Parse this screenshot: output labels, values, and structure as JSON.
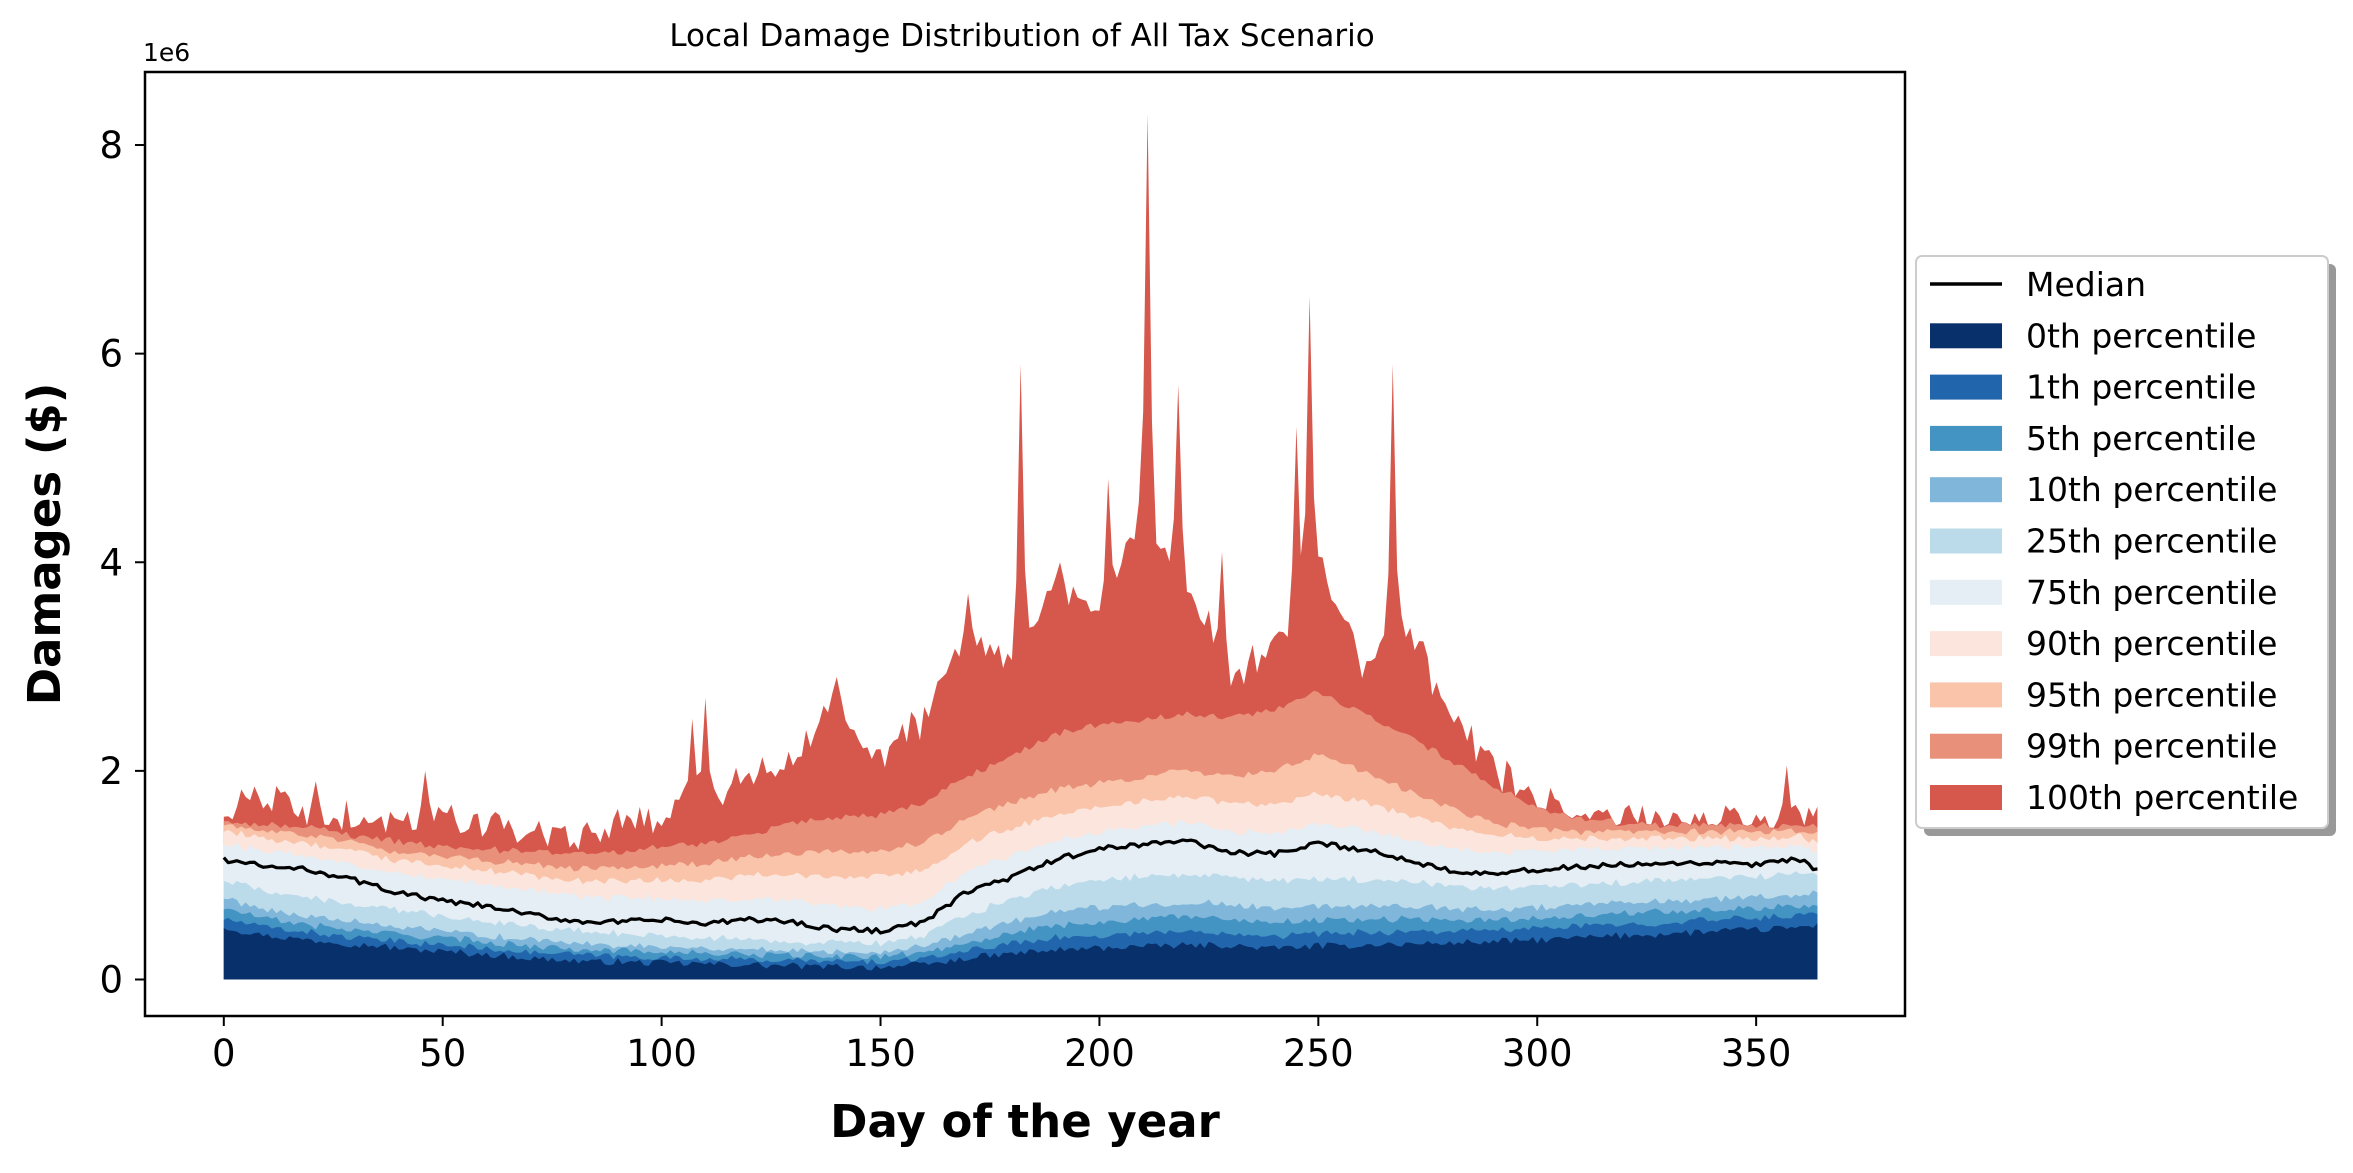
{
  "chart_data": {
    "type": "area",
    "title": "Local Damage Distribution of All Tax Scenario",
    "xlabel": "Day of the year",
    "ylabel": "Damages ($)",
    "y_multiplier_label": "1e6",
    "xlim": [
      -18,
      384
    ],
    "ylim": [
      -0.35,
      8.7
    ],
    "x_ticks": [
      0,
      50,
      100,
      150,
      200,
      250,
      300,
      350
    ],
    "y_ticks": [
      0,
      2,
      4,
      6,
      8
    ],
    "grid": false,
    "legend_position": "right",
    "legend": [
      {
        "label": "Median",
        "kind": "line",
        "color": "#000000"
      },
      {
        "label": "0th percentile",
        "kind": "patch",
        "color": "#08306b"
      },
      {
        "label": "1th percentile",
        "kind": "patch",
        "color": "#2166ac"
      },
      {
        "label": "5th percentile",
        "kind": "patch",
        "color": "#4393c3"
      },
      {
        "label": "10th percentile",
        "kind": "patch",
        "color": "#7fb6d9"
      },
      {
        "label": "25th percentile",
        "kind": "patch",
        "color": "#bcdbea"
      },
      {
        "label": "75th percentile",
        "kind": "patch",
        "color": "#e4eef4"
      },
      {
        "label": "90th percentile",
        "kind": "patch",
        "color": "#fbe5dc"
      },
      {
        "label": "95th percentile",
        "kind": "patch",
        "color": "#f9c4a9"
      },
      {
        "label": "99th percentile",
        "kind": "patch",
        "color": "#e8907a"
      },
      {
        "label": "100th percentile",
        "kind": "patch",
        "color": "#d6574b"
      }
    ],
    "x_days": [
      0,
      10,
      20,
      30,
      40,
      50,
      60,
      70,
      80,
      90,
      100,
      110,
      120,
      130,
      140,
      150,
      160,
      170,
      180,
      190,
      200,
      210,
      220,
      230,
      240,
      250,
      260,
      270,
      280,
      290,
      300,
      310,
      320,
      330,
      340,
      350,
      360,
      364
    ],
    "series": [
      {
        "name": "0th percentile",
        "values": [
          0.5,
          0.42,
          0.38,
          0.34,
          0.3,
          0.27,
          0.24,
          0.2,
          0.18,
          0.17,
          0.16,
          0.15,
          0.14,
          0.13,
          0.12,
          0.12,
          0.14,
          0.2,
          0.25,
          0.28,
          0.3,
          0.32,
          0.33,
          0.32,
          0.3,
          0.32,
          0.33,
          0.34,
          0.35,
          0.36,
          0.38,
          0.4,
          0.42,
          0.44,
          0.46,
          0.48,
          0.5,
          0.52
        ]
      },
      {
        "name": "1th percentile",
        "values": [
          0.58,
          0.5,
          0.45,
          0.4,
          0.36,
          0.33,
          0.3,
          0.26,
          0.24,
          0.22,
          0.21,
          0.2,
          0.19,
          0.18,
          0.17,
          0.17,
          0.2,
          0.28,
          0.35,
          0.4,
          0.42,
          0.45,
          0.46,
          0.45,
          0.42,
          0.44,
          0.45,
          0.46,
          0.46,
          0.47,
          0.49,
          0.51,
          0.53,
          0.55,
          0.57,
          0.59,
          0.61,
          0.63
        ]
      },
      {
        "name": "5th percentile",
        "values": [
          0.68,
          0.58,
          0.52,
          0.47,
          0.43,
          0.4,
          0.36,
          0.32,
          0.3,
          0.28,
          0.27,
          0.25,
          0.24,
          0.23,
          0.22,
          0.22,
          0.26,
          0.36,
          0.45,
          0.52,
          0.55,
          0.58,
          0.6,
          0.58,
          0.55,
          0.57,
          0.58,
          0.58,
          0.57,
          0.57,
          0.59,
          0.61,
          0.63,
          0.65,
          0.67,
          0.69,
          0.71,
          0.73
        ]
      },
      {
        "name": "10th percentile",
        "values": [
          0.78,
          0.67,
          0.6,
          0.55,
          0.5,
          0.46,
          0.42,
          0.38,
          0.35,
          0.33,
          0.32,
          0.3,
          0.29,
          0.28,
          0.27,
          0.27,
          0.32,
          0.45,
          0.56,
          0.65,
          0.69,
          0.72,
          0.74,
          0.72,
          0.68,
          0.7,
          0.71,
          0.7,
          0.68,
          0.67,
          0.69,
          0.71,
          0.73,
          0.75,
          0.77,
          0.79,
          0.81,
          0.83
        ]
      },
      {
        "name": "25th percentile",
        "values": [
          0.95,
          0.85,
          0.78,
          0.72,
          0.66,
          0.61,
          0.56,
          0.51,
          0.47,
          0.44,
          0.42,
          0.4,
          0.38,
          0.36,
          0.35,
          0.35,
          0.42,
          0.62,
          0.78,
          0.9,
          0.95,
          0.99,
          1.01,
          0.98,
          0.94,
          0.96,
          0.96,
          0.94,
          0.9,
          0.88,
          0.89,
          0.91,
          0.93,
          0.95,
          0.97,
          0.99,
          1.01,
          1.02
        ]
      },
      {
        "name": "Median",
        "values": [
          1.15,
          1.08,
          1.05,
          0.95,
          0.83,
          0.75,
          0.7,
          0.62,
          0.56,
          0.55,
          0.57,
          0.53,
          0.58,
          0.55,
          0.48,
          0.47,
          0.55,
          0.85,
          0.98,
          1.15,
          1.25,
          1.3,
          1.33,
          1.22,
          1.2,
          1.3,
          1.25,
          1.15,
          1.05,
          1.02,
          1.05,
          1.08,
          1.1,
          1.1,
          1.12,
          1.1,
          1.15,
          1.05
        ]
      },
      {
        "name": "75th percentile",
        "values": [
          1.3,
          1.23,
          1.18,
          1.1,
          1.02,
          0.96,
          0.92,
          0.86,
          0.8,
          0.78,
          0.78,
          0.75,
          0.77,
          0.75,
          0.7,
          0.68,
          0.74,
          1.05,
          1.18,
          1.32,
          1.42,
          1.48,
          1.5,
          1.42,
          1.4,
          1.48,
          1.44,
          1.35,
          1.26,
          1.22,
          1.24,
          1.25,
          1.26,
          1.26,
          1.28,
          1.26,
          1.28,
          1.22
        ]
      },
      {
        "name": "90th percentile",
        "values": [
          1.42,
          1.35,
          1.3,
          1.22,
          1.14,
          1.08,
          1.05,
          1.0,
          0.95,
          0.94,
          0.96,
          0.95,
          1.0,
          1.0,
          0.98,
          0.98,
          1.05,
          1.32,
          1.45,
          1.58,
          1.65,
          1.72,
          1.75,
          1.68,
          1.68,
          1.78,
          1.7,
          1.58,
          1.45,
          1.38,
          1.36,
          1.35,
          1.35,
          1.35,
          1.36,
          1.35,
          1.37,
          1.32
        ]
      },
      {
        "name": "95th percentile",
        "values": [
          1.48,
          1.42,
          1.38,
          1.3,
          1.22,
          1.17,
          1.14,
          1.1,
          1.06,
          1.06,
          1.1,
          1.1,
          1.18,
          1.22,
          1.22,
          1.22,
          1.32,
          1.55,
          1.7,
          1.82,
          1.88,
          1.95,
          2.0,
          1.95,
          2.0,
          2.15,
          2.0,
          1.82,
          1.65,
          1.5,
          1.44,
          1.42,
          1.41,
          1.41,
          1.42,
          1.41,
          1.43,
          1.4
        ]
      },
      {
        "name": "99th percentile",
        "values": [
          1.52,
          1.48,
          1.45,
          1.38,
          1.32,
          1.28,
          1.25,
          1.22,
          1.2,
          1.22,
          1.28,
          1.3,
          1.4,
          1.5,
          1.55,
          1.58,
          1.7,
          1.95,
          2.15,
          2.35,
          2.45,
          2.5,
          2.55,
          2.5,
          2.6,
          2.75,
          2.55,
          2.35,
          2.1,
          1.85,
          1.65,
          1.55,
          1.5,
          1.48,
          1.48,
          1.47,
          1.48,
          1.46
        ]
      },
      {
        "name": "100th percentile",
        "values": [
          1.58,
          1.72,
          1.6,
          1.55,
          1.48,
          1.62,
          1.44,
          1.42,
          1.35,
          1.45,
          1.6,
          1.75,
          1.95,
          2.1,
          2.7,
          2.1,
          2.5,
          3.3,
          3.0,
          3.8,
          3.4,
          4.5,
          3.8,
          2.9,
          3.2,
          4.0,
          3.0,
          3.4,
          2.6,
          2.0,
          1.7,
          1.58,
          1.55,
          1.52,
          1.52,
          1.5,
          1.55,
          1.55
        ]
      }
    ],
    "peaks_100th": [
      [
        7,
        1.85
      ],
      [
        21,
        1.9
      ],
      [
        46,
        2.0
      ],
      [
        107,
        2.5
      ],
      [
        110,
        2.7
      ],
      [
        140,
        2.9
      ],
      [
        170,
        3.7
      ],
      [
        182,
        5.9
      ],
      [
        191,
        4.0
      ],
      [
        202,
        4.8
      ],
      [
        211,
        8.3
      ],
      [
        218,
        5.7
      ],
      [
        228,
        4.1
      ],
      [
        245,
        5.3
      ],
      [
        248,
        6.55
      ],
      [
        267,
        5.9
      ],
      [
        289,
        2.2
      ],
      [
        357,
        2.05
      ]
    ]
  }
}
